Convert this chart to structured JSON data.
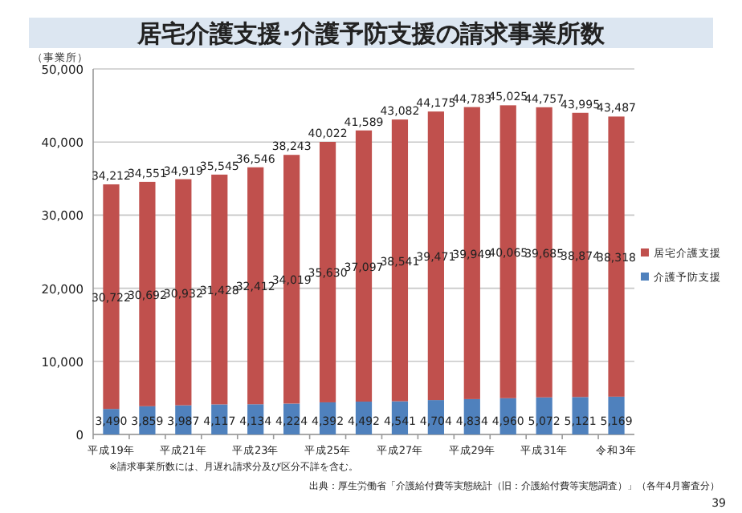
{
  "chart_data": {
    "type": "bar",
    "stacked": true,
    "title": "居宅介護支援·介護予防支援の請求事業所数",
    "ylabel": "（事業所）",
    "categories": [
      "平成19年",
      null,
      "平成21年",
      null,
      "平成23年",
      null,
      "平成25年",
      null,
      "平成27年",
      null,
      "平成29年",
      null,
      "平成31年",
      null,
      "令和3年"
    ],
    "series": [
      {
        "name": "介護予防支援",
        "color": "#4f81bd",
        "values": [
          3490,
          3859,
          3987,
          4117,
          4134,
          4224,
          4392,
          4492,
          4541,
          4704,
          4834,
          4960,
          5072,
          5121,
          5169
        ],
        "value_labels": [
          "3,490",
          "3,859",
          "3,987",
          "4,117",
          "4,134",
          "4,224",
          "4,392",
          "4,492",
          "4,541",
          "4,704",
          "4,834",
          "4,960",
          "5,072",
          "5,121",
          "5,169"
        ]
      },
      {
        "name": "居宅介護支援",
        "color": "#c0504d",
        "values": [
          30722,
          30692,
          30932,
          31428,
          32412,
          34019,
          35630,
          37097,
          38541,
          39471,
          39949,
          40065,
          39685,
          38874,
          38318
        ],
        "value_labels": [
          "30,722",
          "30,692",
          "30,932",
          "31,428",
          "32,412",
          "34,019",
          "35,630",
          "37,097",
          "38,541",
          "39,471",
          "39,949",
          "40,065",
          "39,685",
          "38,874",
          "38,318"
        ]
      }
    ],
    "totals": [
      "34,212",
      "34,551",
      "34,919",
      "35,545",
      "36,546",
      "38,243",
      "40,022",
      "41,589",
      "43,082",
      "44,175",
      "44,783",
      "45,025",
      "44,757",
      "43,995",
      "43,487"
    ],
    "ylim": [
      0,
      50000
    ],
    "yticks": [
      {
        "value": 0,
        "label": "0"
      },
      {
        "value": 10000,
        "label": "10,000"
      },
      {
        "value": 20000,
        "label": "20,000"
      },
      {
        "value": 30000,
        "label": "30,000"
      },
      {
        "value": 40000,
        "label": "40,000"
      },
      {
        "value": 50000,
        "label": "50,000"
      }
    ],
    "grid": "y",
    "legend": "right",
    "annotations": [
      "※請求事業所数には、月遅れ請求分及び区分不詳を含む。",
      "出典：厚生労働省「介護給付費等実態統計（旧：介護給付費等実態調査）」（各年4月審査分）",
      "39"
    ]
  }
}
